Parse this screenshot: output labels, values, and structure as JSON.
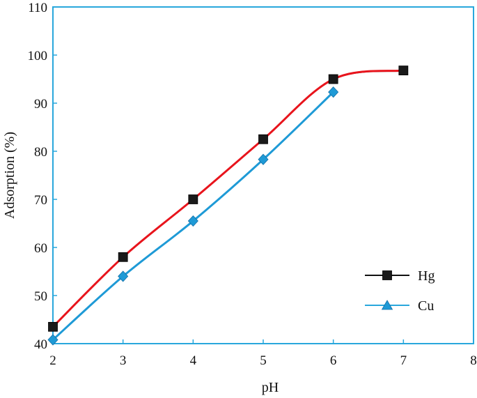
{
  "chart_data": {
    "type": "line",
    "title": "",
    "xlabel": "pH",
    "ylabel": "Adsorption (%)",
    "xlim": [
      2,
      8
    ],
    "ylim": [
      40,
      110
    ],
    "xticks": [
      2,
      3,
      4,
      5,
      6,
      7,
      8
    ],
    "yticks": [
      40,
      50,
      60,
      70,
      80,
      90,
      100,
      110
    ],
    "grid": false,
    "legend": "bottom-right",
    "frame_color": "#29a7dc",
    "series": [
      {
        "name": "Hg",
        "marker": "square",
        "marker_color": "#1a1a1a",
        "line_color": "#e8141c",
        "x": [
          2,
          3,
          4,
          5,
          6,
          7
        ],
        "y": [
          43.5,
          58,
          70,
          82.5,
          95,
          96.8
        ],
        "legend_line_color": "#111111",
        "legend_marker": "square"
      },
      {
        "name": "Cu",
        "marker": "diamond",
        "marker_color": "#1e9ad6",
        "line_color": "#1e9ad6",
        "x": [
          2,
          3,
          4,
          5,
          6
        ],
        "y": [
          40.8,
          54,
          65.5,
          78.3,
          92.3
        ],
        "legend_line_color": "#29a7dc",
        "legend_marker": "triangle"
      }
    ]
  }
}
